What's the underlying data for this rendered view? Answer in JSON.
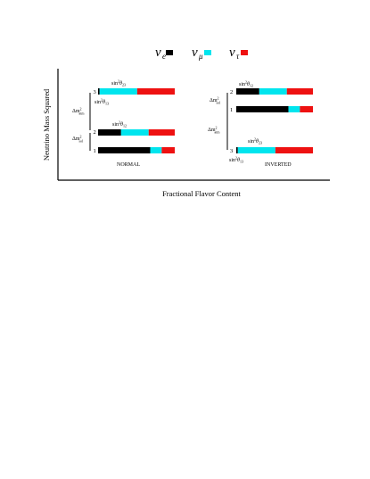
{
  "legend": [
    {
      "key": "nu_e",
      "symbol": "ν",
      "sub": "e",
      "color": "#000000"
    },
    {
      "key": "nu_mu",
      "symbol": "ν",
      "sub": "μ",
      "color": "#00e5ee"
    },
    {
      "key": "nu_tau",
      "symbol": "ν",
      "sub": "τ",
      "color": "#ee1111"
    }
  ],
  "axes": {
    "ylabel": "Neutrino Mass Squared",
    "xlabel": "Fractional Flavor Content"
  },
  "labels": {
    "sin2": "sin",
    "sup2": "2",
    "theta": "θ",
    "dm": "Δm",
    "atm": "atm",
    "sol": "sol"
  },
  "hierarchies": [
    {
      "name": "NORMAL",
      "states": [
        {
          "id": "3",
          "fractions": [
            0.02,
            0.49,
            0.49
          ]
        },
        {
          "id": "2",
          "fractions": [
            0.3,
            0.36,
            0.34
          ]
        },
        {
          "id": "1",
          "fractions": [
            0.68,
            0.15,
            0.17
          ]
        }
      ],
      "angle_labels": [
        {
          "text": "23",
          "state": "3",
          "pos": "above"
        },
        {
          "text": "13",
          "state": "3",
          "pos": "below"
        },
        {
          "text": "12",
          "state": "2",
          "pos": "above"
        }
      ],
      "splittings": [
        {
          "name": "atm",
          "between": [
            "3",
            "2"
          ]
        },
        {
          "name": "sol",
          "between": [
            "2",
            "1"
          ]
        }
      ]
    },
    {
      "name": "INVERTED",
      "states": [
        {
          "id": "2",
          "fractions": [
            0.3,
            0.36,
            0.34
          ]
        },
        {
          "id": "1",
          "fractions": [
            0.68,
            0.15,
            0.17
          ]
        },
        {
          "id": "3",
          "fractions": [
            0.02,
            0.49,
            0.49
          ]
        }
      ],
      "angle_labels": [
        {
          "text": "12",
          "state": "2",
          "pos": "above"
        },
        {
          "text": "23",
          "state": "3",
          "pos": "above"
        },
        {
          "text": "13",
          "state": "3",
          "pos": "below"
        }
      ],
      "splittings": [
        {
          "name": "sol",
          "between": [
            "2",
            "1"
          ]
        },
        {
          "name": "atm",
          "between": [
            "1",
            "3"
          ]
        }
      ]
    }
  ]
}
